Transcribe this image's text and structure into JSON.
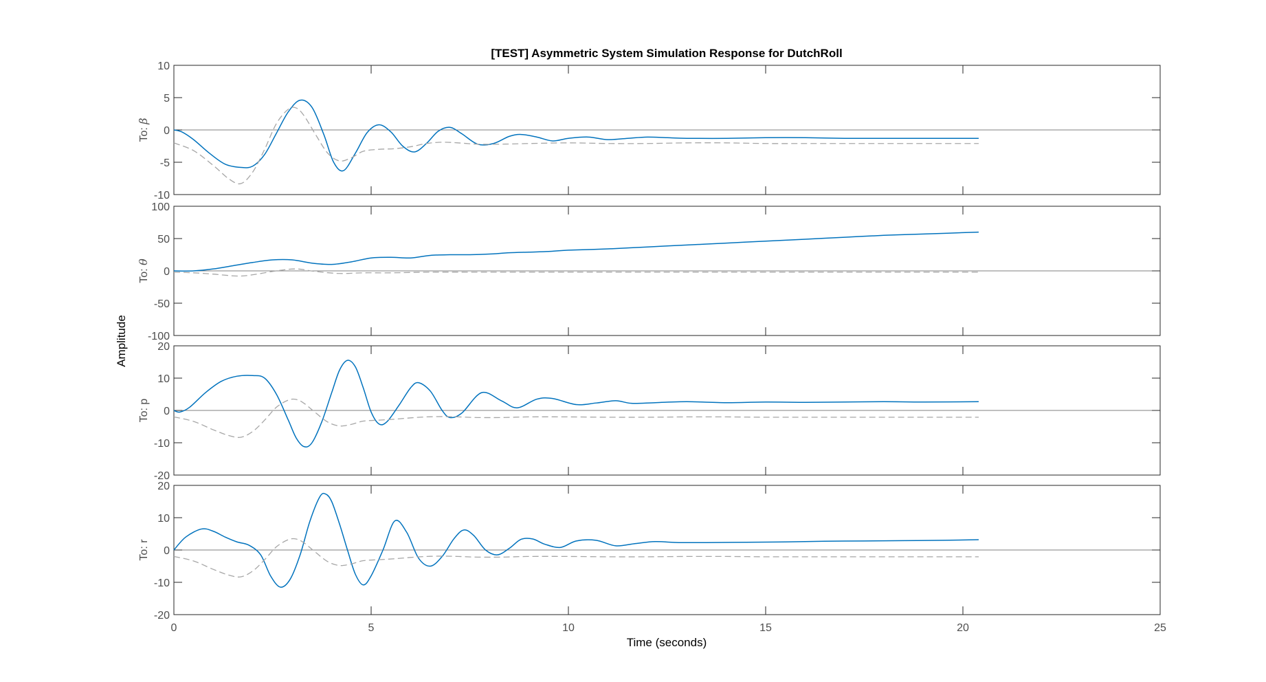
{
  "chart_data": {
    "type": "line",
    "title": "[TEST] Asymmetric System Simulation Response for DutchRoll",
    "xlabel": "Time (seconds)",
    "ylabel": "Amplitude",
    "xlim": [
      0,
      25
    ],
    "xticks": [
      0,
      5,
      10,
      15,
      20,
      25
    ],
    "grid": false,
    "colors": {
      "response": "#0072BD",
      "reference": "#a6a6a6"
    },
    "panels": [
      {
        "label_prefix": "To: ",
        "label_var": "β",
        "ylim": [
          -10,
          10
        ],
        "yticks": [
          -10,
          -5,
          0,
          5,
          10
        ],
        "series": [
          {
            "style": "solid",
            "x": [
              0,
              0.2,
              0.5,
              0.9,
              1.3,
              1.7,
              2.0,
              2.3,
              2.6,
              2.9,
              3.2,
              3.5,
              3.8,
              4.05,
              4.3,
              4.6,
              4.9,
              5.2,
              5.5,
              5.8,
              6.1,
              6.4,
              6.7,
              7.0,
              7.3,
              7.7,
              8.1,
              8.5,
              8.8,
              9.2,
              9.6,
              10.0,
              10.5,
              11.0,
              11.5,
              12.0,
              12.5,
              13.0,
              14.0,
              15.0,
              16.0,
              17.0,
              18.0,
              19.0,
              20.4
            ],
            "y": [
              0,
              -0.3,
              -1.5,
              -3.6,
              -5.3,
              -5.8,
              -5.6,
              -3.8,
              -0.5,
              2.8,
              4.6,
              3.5,
              -0.7,
              -5.0,
              -6.3,
              -3.6,
              -0.4,
              0.8,
              -0.3,
              -2.5,
              -3.4,
              -2.1,
              -0.2,
              0.4,
              -0.6,
              -2.2,
              -2.1,
              -1.0,
              -0.7,
              -1.1,
              -1.7,
              -1.3,
              -1.1,
              -1.5,
              -1.3,
              -1.1,
              -1.2,
              -1.3,
              -1.3,
              -1.2,
              -1.2,
              -1.3,
              -1.3,
              -1.3,
              -1.3
            ]
          },
          {
            "style": "dashed",
            "x": [
              0,
              0.5,
              1.0,
              1.4,
              1.7,
              2.0,
              2.3,
              2.6,
              2.9,
              3.1,
              3.3,
              3.6,
              3.9,
              4.2,
              4.5,
              4.8,
              5.2,
              5.6,
              6.0,
              6.4,
              6.8,
              7.2,
              7.7,
              8.3,
              9.0,
              10.0,
              11.0,
              12.0,
              13.0,
              14.0,
              15.0,
              16.0,
              17.0,
              18.0,
              19.0,
              20.4
            ],
            "y": [
              -2,
              -3.2,
              -5.5,
              -7.6,
              -8.3,
              -6.5,
              -3.0,
              1.0,
              3.2,
              3.4,
              2.2,
              -0.8,
              -3.6,
              -4.8,
              -4.3,
              -3.3,
              -3.0,
              -2.9,
              -2.6,
              -2.1,
              -1.9,
              -2.0,
              -2.2,
              -2.2,
              -2.1,
              -2.0,
              -2.1,
              -2.1,
              -2.0,
              -2.0,
              -2.1,
              -2.1,
              -2.1,
              -2.1,
              -2.1,
              -2.1
            ]
          }
        ]
      },
      {
        "label_prefix": "To: ",
        "label_var": "θ",
        "ylim": [
          -100,
          100
        ],
        "yticks": [
          -100,
          -50,
          0,
          50,
          100
        ],
        "series": [
          {
            "style": "solid",
            "x": [
              0,
              0.5,
              1.0,
              1.5,
              2.0,
              2.5,
              3.0,
              3.5,
              4.0,
              4.5,
              5.0,
              5.5,
              6.0,
              6.5,
              7.0,
              7.5,
              8.0,
              8.5,
              9.0,
              9.5,
              10.0,
              11.0,
              12.0,
              13.0,
              14.0,
              15.0,
              16.0,
              17.0,
              18.0,
              19.0,
              20.4
            ],
            "y": [
              0,
              0,
              3,
              8,
              13,
              17,
              17,
              12,
              10,
              14,
              20,
              21,
              20,
              24,
              25,
              25,
              26,
              28,
              29,
              30,
              32,
              34,
              37,
              40,
              43,
              46,
              49,
              52,
              55,
              57,
              60
            ]
          },
          {
            "style": "dashed",
            "x": [
              0,
              0.5,
              1.0,
              1.6,
              2.0,
              2.6,
              3.1,
              3.6,
              4.2,
              4.8,
              5.5,
              6.5,
              8.0,
              10.0,
              12.0,
              14.0,
              16.0,
              18.0,
              20.4
            ],
            "y": [
              -2,
              -3,
              -5,
              -8,
              -6,
              0,
              3,
              -1,
              -4,
              -3,
              -3,
              -2,
              -2,
              -2,
              -2,
              -2,
              -2,
              -2,
              -2
            ]
          }
        ]
      },
      {
        "label_prefix": "To: ",
        "label_var": "p",
        "ylim": [
          -20,
          20
        ],
        "yticks": [
          -20,
          -10,
          0,
          10,
          20
        ],
        "series": [
          {
            "style": "solid",
            "x": [
              0,
              0.15,
              0.4,
              0.8,
              1.2,
              1.6,
              2.0,
              2.3,
              2.6,
              2.9,
              3.1,
              3.3,
              3.5,
              3.75,
              4.0,
              4.2,
              4.4,
              4.6,
              4.8,
              5.0,
              5.2,
              5.4,
              5.7,
              6.0,
              6.2,
              6.5,
              6.8,
              7.0,
              7.3,
              7.8,
              8.3,
              8.7,
              9.2,
              9.6,
              10.2,
              10.7,
              11.2,
              11.6,
              12.2,
              13.0,
              14.0,
              15.0,
              16.0,
              17.0,
              18.0,
              19.0,
              20.4
            ],
            "y": [
              0,
              -0.5,
              1.0,
              5.5,
              9.0,
              10.6,
              10.8,
              10.0,
              5.0,
              -3.0,
              -8.5,
              -11.2,
              -10.0,
              -3.5,
              5.5,
              12.5,
              15.5,
              13.5,
              7.0,
              -0.5,
              -4.2,
              -3.5,
              1.5,
              7.0,
              8.6,
              6.0,
              0.0,
              -2.2,
              -0.8,
              5.5,
              3.0,
              0.8,
              3.5,
              3.7,
              1.8,
              2.3,
              3.0,
              2.2,
              2.4,
              2.7,
              2.4,
              2.6,
              2.5,
              2.6,
              2.7,
              2.6,
              2.7
            ]
          },
          {
            "style": "dashed",
            "x": [
              0,
              0.5,
              1.0,
              1.4,
              1.7,
              2.0,
              2.3,
              2.6,
              2.9,
              3.1,
              3.3,
              3.6,
              3.9,
              4.2,
              4.5,
              4.8,
              5.2,
              5.6,
              6.0,
              6.4,
              6.8,
              7.2,
              7.7,
              8.3,
              9.0,
              10.0,
              11.0,
              12.0,
              13.0,
              14.0,
              15.0,
              16.0,
              17.0,
              18.0,
              19.0,
              20.4
            ],
            "y": [
              -2,
              -3.4,
              -6.0,
              -7.8,
              -8.3,
              -6.5,
              -3.0,
              1.0,
              3.2,
              3.4,
              2.2,
              -0.8,
              -3.6,
              -4.8,
              -4.3,
              -3.3,
              -3.0,
              -2.7,
              -2.3,
              -2.0,
              -1.9,
              -2.0,
              -2.2,
              -2.2,
              -2.0,
              -2.0,
              -2.1,
              -2.1,
              -2.0,
              -2.0,
              -2.1,
              -2.1,
              -2.1,
              -2.1,
              -2.1,
              -2.1
            ]
          }
        ]
      },
      {
        "label_prefix": "To: ",
        "label_var": "r",
        "ylim": [
          -20,
          20
        ],
        "yticks": [
          -20,
          -10,
          0,
          10,
          20
        ],
        "series": [
          {
            "style": "solid",
            "x": [
              0,
              0.3,
              0.7,
              1.0,
              1.3,
              1.6,
              1.9,
              2.2,
              2.45,
              2.7,
              2.95,
              3.2,
              3.45,
              3.7,
              3.85,
              4.0,
              4.2,
              4.4,
              4.6,
              4.8,
              5.0,
              5.3,
              5.6,
              5.9,
              6.2,
              6.5,
              6.8,
              7.1,
              7.35,
              7.6,
              7.9,
              8.2,
              8.5,
              8.8,
              9.1,
              9.4,
              9.8,
              10.2,
              10.7,
              11.2,
              11.7,
              12.2,
              12.8,
              13.5,
              14.5,
              15.5,
              16.5,
              17.5,
              18.5,
              19.5,
              20.4
            ],
            "y": [
              0,
              4.0,
              6.5,
              5.8,
              4.0,
              2.5,
              1.5,
              -1.5,
              -8.0,
              -11.5,
              -9.0,
              -1.5,
              9.0,
              16.5,
              17.3,
              15.0,
              8.0,
              0.0,
              -7.5,
              -10.8,
              -8.0,
              0.0,
              9.0,
              5.5,
              -2.5,
              -5.0,
              -2.0,
              3.5,
              6.2,
              4.5,
              0.0,
              -1.5,
              0.5,
              3.3,
              3.4,
              1.8,
              0.8,
              2.8,
              3.0,
              1.3,
              2.0,
              2.6,
              2.3,
              2.3,
              2.4,
              2.5,
              2.7,
              2.8,
              2.9,
              3.0,
              3.2
            ]
          },
          {
            "style": "dashed",
            "x": [
              0,
              0.5,
              1.0,
              1.4,
              1.7,
              2.0,
              2.3,
              2.6,
              2.9,
              3.1,
              3.3,
              3.6,
              3.9,
              4.2,
              4.5,
              4.8,
              5.2,
              5.6,
              6.0,
              6.4,
              6.8,
              7.2,
              7.7,
              8.3,
              9.0,
              10.0,
              11.0,
              12.0,
              13.0,
              14.0,
              15.0,
              16.0,
              17.0,
              18.0,
              19.0,
              20.4
            ],
            "y": [
              -2,
              -3.4,
              -6.0,
              -7.8,
              -8.3,
              -6.5,
              -3.0,
              1.0,
              3.2,
              3.4,
              2.2,
              -0.8,
              -3.6,
              -4.8,
              -4.3,
              -3.3,
              -3.0,
              -2.7,
              -2.3,
              -2.0,
              -1.9,
              -2.0,
              -2.2,
              -2.2,
              -2.0,
              -2.0,
              -2.1,
              -2.1,
              -2.0,
              -2.0,
              -2.1,
              -2.1,
              -2.1,
              -2.1,
              -2.1,
              -2.1
            ]
          }
        ]
      }
    ]
  }
}
